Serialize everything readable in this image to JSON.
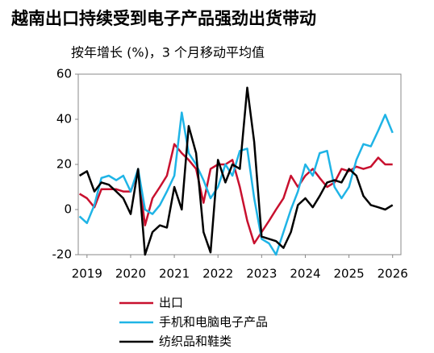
{
  "chart_data": {
    "type": "line",
    "title": "越南出口持续受到电子产品强劲出货带动",
    "subtitle": "按年增长 (%)，3 个月移动平均值",
    "x": [
      2018.83,
      2019.0,
      2019.17,
      2019.33,
      2019.5,
      2019.67,
      2019.83,
      2020.0,
      2020.17,
      2020.33,
      2020.5,
      2020.67,
      2020.83,
      2021.0,
      2021.17,
      2021.33,
      2021.5,
      2021.67,
      2021.83,
      2022.0,
      2022.17,
      2022.33,
      2022.5,
      2022.67,
      2022.83,
      2023.0,
      2023.17,
      2023.33,
      2023.5,
      2023.67,
      2023.83,
      2024.0,
      2024.17,
      2024.33,
      2024.5,
      2024.67,
      2024.83,
      2025.0,
      2025.17,
      2025.33,
      2025.5,
      2025.67,
      2025.83,
      2026.0
    ],
    "xlim": [
      2018.8,
      2026.19
    ],
    "xticks": [
      2019,
      2020,
      2021,
      2022,
      2023,
      2024,
      2025,
      2026
    ],
    "ylim": [
      -20,
      60
    ],
    "yticks": [
      -20,
      0,
      20,
      40,
      60
    ],
    "series": [
      {
        "name": "出口",
        "color": "#c8102e",
        "values": [
          7,
          5,
          1,
          9,
          9,
          9,
          8,
          8,
          17,
          -7,
          5,
          10,
          15,
          29,
          25,
          22,
          18,
          3,
          18,
          20,
          20,
          22,
          10,
          -5,
          -15,
          -10,
          -5,
          0,
          5,
          15,
          10,
          15,
          18,
          14,
          10,
          12,
          18,
          17,
          19,
          18,
          19,
          23,
          20,
          20
        ]
      },
      {
        "name": "手机和电脑电子产品",
        "color": "#1fb4e6",
        "values": [
          -3,
          -6,
          2,
          14,
          15,
          13,
          15,
          8,
          18,
          0,
          -2,
          2,
          8,
          15,
          43,
          25,
          20,
          13,
          5,
          10,
          20,
          15,
          26,
          27,
          5,
          -13,
          -15,
          -20,
          -10,
          0,
          8,
          20,
          15,
          25,
          26,
          10,
          5,
          10,
          22,
          29,
          28,
          35,
          42,
          34
        ]
      },
      {
        "name": "纺织品和鞋类",
        "color": "#000000",
        "values": [
          15,
          17,
          8,
          12,
          11,
          8,
          5,
          -2,
          18,
          -20,
          -10,
          -7,
          -8,
          10,
          0,
          37,
          25,
          -10,
          -19,
          22,
          12,
          20,
          18,
          54,
          30,
          -12,
          -13,
          -14,
          -17,
          -10,
          2,
          5,
          1,
          6,
          12,
          13,
          12,
          18,
          15,
          6,
          2,
          1,
          0,
          2
        ]
      }
    ]
  }
}
